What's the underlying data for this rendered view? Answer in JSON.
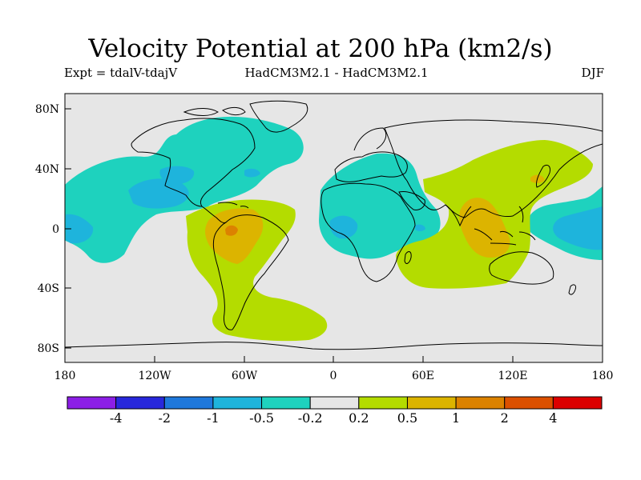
{
  "title": "Velocity Potential at 200 hPa (km2/s)",
  "subtitle_left": "Expt = tdalV-tdajV",
  "subtitle_center": "HadCM3M2.1 - HadCM3M2.1",
  "subtitle_right": "DJF",
  "map": {
    "lon_ticks": [
      "180",
      "120W",
      "60W",
      "0",
      "60E",
      "120E",
      "180"
    ],
    "lat_ticks": [
      "80N",
      "40N",
      "0",
      "40S",
      "80S"
    ],
    "ocean_color": "#e6e6e6"
  },
  "colorbar": {
    "colors": [
      "#8c1ee6",
      "#2828dc",
      "#1e78dc",
      "#1eb4dc",
      "#1ed2be",
      "#e6e6e6",
      "#b4dc00",
      "#dcb400",
      "#dc8200",
      "#dc5000",
      "#dc0000"
    ],
    "labels": [
      "-4",
      "-2",
      "-1",
      "-0.5",
      "-0.2",
      "0.2",
      "0.5",
      "1",
      "2",
      "4"
    ]
  }
}
